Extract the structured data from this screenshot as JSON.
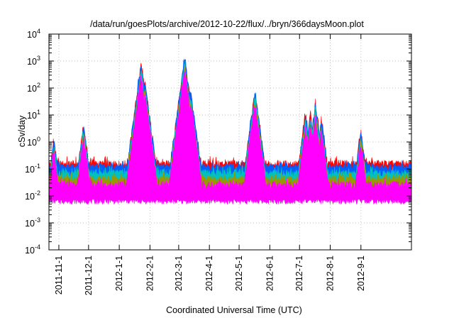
{
  "chart_data": {
    "type": "line",
    "title": "/data/run/goesPlots/archive/2012-10-22/flux/../bryn/366daysMoon.plot",
    "xlabel": "Coordinated Universal Time (UTC)",
    "ylabel": "cSv/day",
    "yscale": "log",
    "ylim": [
      0.0001,
      10000
    ],
    "xlim": [
      "2011-10-22",
      "2012-10-22"
    ],
    "grid": true,
    "y_ticks": [
      {
        "value": 0.0001,
        "base": "10",
        "exp": "-4"
      },
      {
        "value": 0.001,
        "base": "10",
        "exp": "-3"
      },
      {
        "value": 0.01,
        "base": "10",
        "exp": "-2"
      },
      {
        "value": 0.1,
        "base": "10",
        "exp": "-1"
      },
      {
        "value": 1,
        "base": "10",
        "exp": "0"
      },
      {
        "value": 10,
        "base": "10",
        "exp": "1"
      },
      {
        "value": 100,
        "base": "10",
        "exp": "2"
      },
      {
        "value": 1000,
        "base": "10",
        "exp": "3"
      },
      {
        "value": 10000,
        "base": "10",
        "exp": "4"
      }
    ],
    "x_ticks": [
      {
        "label": "2011-11-1",
        "date": "2011-11-01"
      },
      {
        "label": "2011-12-1",
        "date": "2011-12-01"
      },
      {
        "label": "2012-1-1",
        "date": "2012-01-01"
      },
      {
        "label": "2012-2-1",
        "date": "2012-02-01"
      },
      {
        "label": "2012-3-1",
        "date": "2012-03-01"
      },
      {
        "label": "2012-4-1",
        "date": "2012-04-01"
      },
      {
        "label": "2012-5-1",
        "date": "2012-05-01"
      },
      {
        "label": "2012-6-1",
        "date": "2012-06-01"
      },
      {
        "label": "2012-7-1",
        "date": "2012-07-01"
      },
      {
        "label": "2012-8-1",
        "date": "2012-08-01"
      },
      {
        "label": "2012-9-1",
        "date": "2012-09-01"
      }
    ],
    "series": [
      {
        "color": "#ff0000",
        "baseline": 0.06,
        "upper": 0.11
      },
      {
        "color": "#0060ff",
        "baseline": 0.04,
        "upper": 0.085
      },
      {
        "color": "#00c0c0",
        "baseline": 0.028,
        "upper": 0.05
      },
      {
        "color": "#9a9a00",
        "baseline": 0.02,
        "upper": 0.03
      },
      {
        "color": "#ff00ff",
        "baseline": 0.009,
        "upper": 0.018
      }
    ],
    "events": [
      {
        "date": "2011-10-27",
        "peak": 0.45
      },
      {
        "date": "2011-11-26",
        "peak": 1.5
      },
      {
        "date": "2012-01-23",
        "peak": 300
      },
      {
        "date": "2012-01-27",
        "peak": 60
      },
      {
        "date": "2012-03-07",
        "peak": 500
      },
      {
        "date": "2012-03-13",
        "peak": 30
      },
      {
        "date": "2012-05-17",
        "peak": 28
      },
      {
        "date": "2012-07-07",
        "peak": 4
      },
      {
        "date": "2012-07-12",
        "peak": 4
      },
      {
        "date": "2012-07-17",
        "peak": 9
      },
      {
        "date": "2012-07-23",
        "peak": 2.5
      },
      {
        "date": "2012-09-01",
        "peak": 0.9
      }
    ]
  }
}
